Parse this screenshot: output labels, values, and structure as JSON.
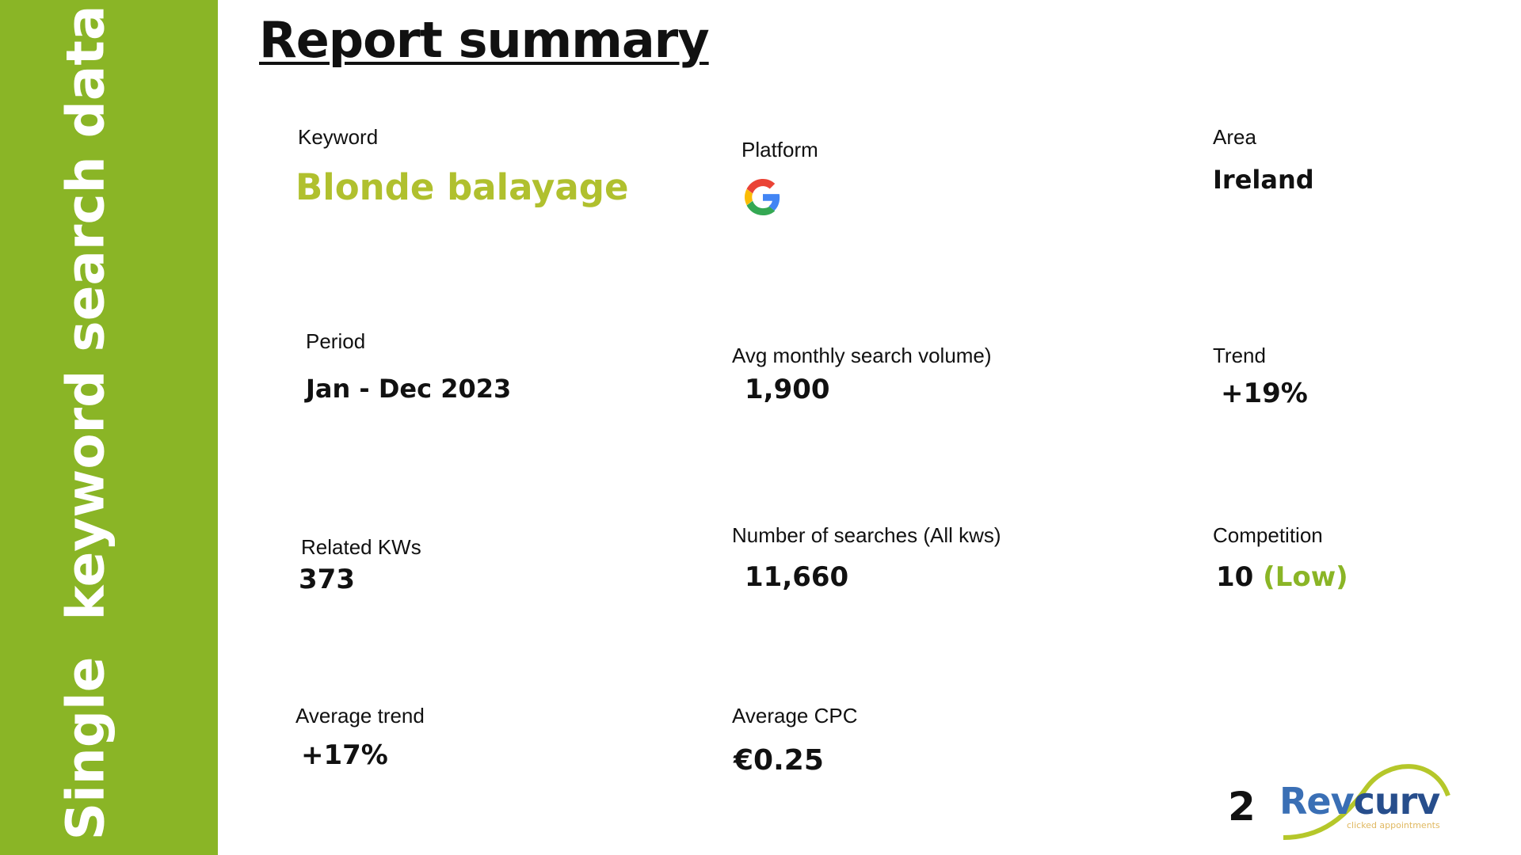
{
  "sidebar": {
    "title": "Single  keyword search data",
    "color": "#8ab526"
  },
  "header": {
    "title": "Report summary"
  },
  "fields": {
    "keyword": {
      "label": "Keyword",
      "value": "Blonde balayage",
      "color": "#b0c02e"
    },
    "platform": {
      "label": "Platform",
      "icon": "google-icon"
    },
    "area": {
      "label": "Area",
      "value": "Ireland"
    },
    "period": {
      "label": "Period",
      "value": "Jan - Dec 2023"
    },
    "avg_volume": {
      "label": "Avg monthly search volume)",
      "value": "1,900"
    },
    "trend": {
      "label": "Trend",
      "value": "+19%"
    },
    "related": {
      "label": "Related KWs",
      "value": "373"
    },
    "searches": {
      "label": "Number of searches (All kws)",
      "value": "11,660"
    },
    "competition": {
      "label": "Competition",
      "value": "10",
      "level": "(Low)"
    },
    "avg_trend": {
      "label": "Average trend",
      "value": "+17%"
    },
    "avg_cpc": {
      "label": "Average  CPC",
      "value": "€0.25"
    }
  },
  "footer": {
    "page": "2",
    "logo": {
      "name": "Revcurv",
      "tagline": "clicked appointments"
    }
  }
}
